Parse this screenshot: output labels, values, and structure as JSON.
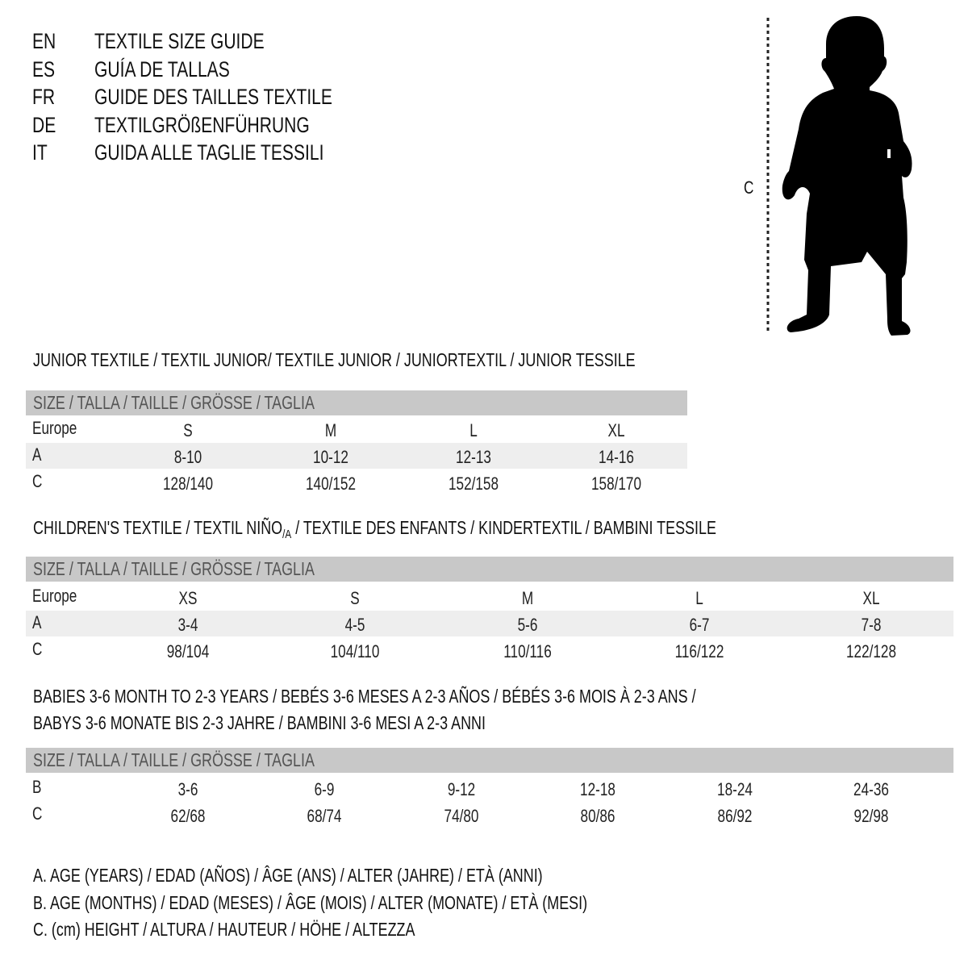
{
  "titles": [
    {
      "code": "EN",
      "text": "TEXTILE SIZE GUIDE"
    },
    {
      "code": "ES",
      "text": "GUÍA DE TALLAS"
    },
    {
      "code": "FR",
      "text": "GUIDE DES TAILLES TEXTILE"
    },
    {
      "code": "DE",
      "text": "TEXTILGRÖßENFÜHRUNG"
    },
    {
      "code": "IT",
      "text": "GUIDA ALLE TAGLIE TESSILI"
    }
  ],
  "figure": {
    "measure_label": "C",
    "icon": "child-silhouette-icon"
  },
  "size_header": "SIZE / TALLA / TAILLE / GRÖSSE / TAGLIA",
  "junior": {
    "title": "JUNIOR TEXTILE / TEXTIL JUNIOR/ TEXTILE JUNIOR / JUNIORTEXTIL / JUNIOR TESSILE",
    "rows": [
      {
        "label": "Europe",
        "values": [
          "S",
          "M",
          "L",
          "XL"
        ]
      },
      {
        "label": "A",
        "values": [
          "8-10",
          "10-12",
          "12-13",
          "14-16"
        ]
      },
      {
        "label": "C",
        "values": [
          "128/140",
          "140/152",
          "152/158",
          "158/170"
        ]
      }
    ]
  },
  "children": {
    "title_a": "CHILDREN'S TEXTILE / TEXTIL NIÑO",
    "title_sub": "/A",
    "title_b": " / TEXTILE DES ENFANTS / KINDERTEXTIL / BAMBINI TESSILE",
    "rows": [
      {
        "label": "Europe",
        "values": [
          "XS",
          "S",
          "M",
          "L",
          "XL"
        ]
      },
      {
        "label": "A",
        "values": [
          "3-4",
          "4-5",
          "5-6",
          "6-7",
          "7-8"
        ]
      },
      {
        "label": "C",
        "values": [
          "98/104",
          "104/110",
          "110/116",
          "116/122",
          "122/128"
        ]
      }
    ]
  },
  "babies": {
    "title_line1": "BABIES 3-6 MONTH TO 2-3 YEARS / BEBÉS 3-6 MESES A 2-3 AÑOS / BÉBÉS 3-6 MOIS À 2-3 ANS /",
    "title_line2": "BABYS 3-6 MONATE BIS 2-3 JAHRE / BAMBINI 3-6 MESI A 2-3 ANNI",
    "rows": [
      {
        "label": "B",
        "values": [
          "3-6",
          "6-9",
          "9-12",
          "12-18",
          "18-24",
          "24-36"
        ]
      },
      {
        "label": "C",
        "values": [
          "62/68",
          "68/74",
          "74/80",
          "80/86",
          "86/92",
          "92/98"
        ]
      }
    ]
  },
  "legend": [
    "A. AGE (YEARS) / EDAD (AÑOS) / ÂGE (ANS) / ALTER (JAHRE) / ETÀ (ANNI)",
    "B. AGE (MONTHS) / EDAD (MESES) / ÂGE (MOIS) / ALTER (MONATE) / ETÀ (MESI)",
    "C. (cm) HEIGHT / ALTURA / HAUTEUR / HÖHE / ALTEZZA"
  ],
  "colors": {
    "header_band": "#c8c8c8",
    "alt_row": "#eeeeee"
  }
}
